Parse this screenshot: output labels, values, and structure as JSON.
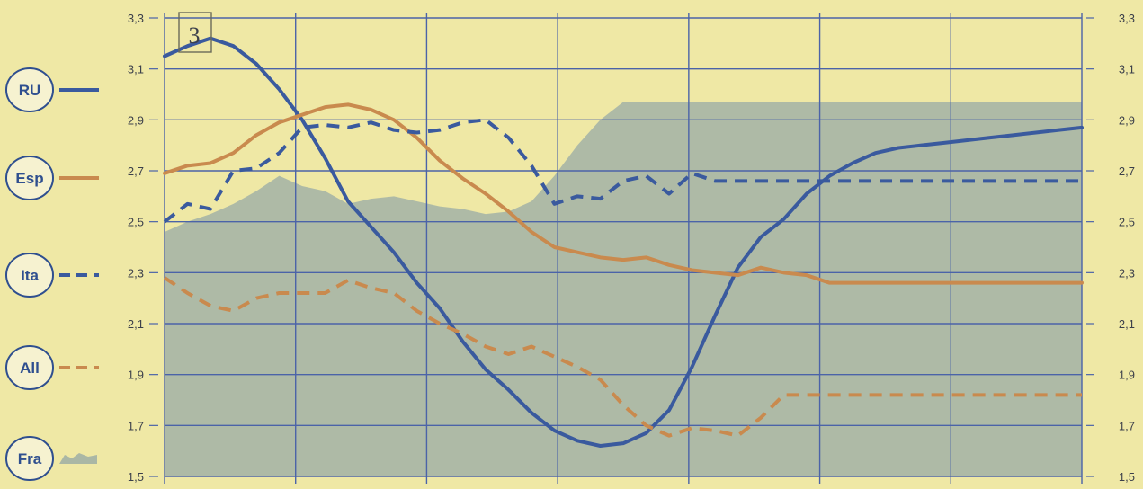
{
  "chart_data": {
    "type": "line",
    "panel_label": "3",
    "ylim": [
      1.5,
      3.3
    ],
    "y_ticks": [
      "3,3",
      "3,1",
      "2,9",
      "2,7",
      "2,5",
      "2,3",
      "2,1",
      "1,9",
      "1,7",
      "1,5"
    ],
    "y_tick_values": [
      3.3,
      3.1,
      2.9,
      2.7,
      2.5,
      2.3,
      2.1,
      1.9,
      1.7,
      1.5
    ],
    "x": [
      0,
      1,
      2,
      3,
      4,
      5,
      6,
      7,
      8,
      9,
      10,
      11,
      12,
      13,
      14,
      15,
      16,
      17,
      18,
      19,
      20,
      21,
      22,
      23,
      24,
      25,
      26,
      27,
      28,
      29,
      30,
      31,
      32,
      33,
      34,
      35,
      36,
      37,
      38,
      39,
      40
    ],
    "xlim": [
      0,
      40
    ],
    "x_grid_count": 7,
    "y_grid": true,
    "legend_position": "left",
    "colors": {
      "blue": "#3a5a9e",
      "orange": "#c98a4e",
      "area": "#aab7a5",
      "background": "#efe8a5",
      "grid": "#4b63a8"
    },
    "series": [
      {
        "name": "RU",
        "style": "solid",
        "color": "#3a5a9e",
        "values": [
          3.15,
          3.19,
          3.22,
          3.19,
          3.12,
          3.02,
          2.9,
          2.75,
          2.58,
          2.48,
          2.38,
          2.26,
          2.16,
          2.03,
          1.92,
          1.84,
          1.75,
          1.68,
          1.64,
          1.62,
          1.63,
          1.67,
          1.76,
          1.93,
          2.13,
          2.32,
          2.44,
          2.51,
          2.61,
          2.68,
          2.73,
          2.77,
          2.79,
          2.8,
          2.81,
          2.82,
          2.83,
          2.84,
          2.85,
          2.86,
          2.87
        ]
      },
      {
        "name": "Esp",
        "style": "solid",
        "color": "#c98a4e",
        "values": [
          2.69,
          2.72,
          2.73,
          2.77,
          2.84,
          2.89,
          2.92,
          2.95,
          2.96,
          2.94,
          2.9,
          2.83,
          2.74,
          2.67,
          2.61,
          2.54,
          2.46,
          2.4,
          2.38,
          2.36,
          2.35,
          2.36,
          2.33,
          2.31,
          2.3,
          2.29,
          2.32,
          2.3,
          2.29,
          2.26,
          2.26,
          2.26,
          2.26,
          2.26,
          2.26,
          2.26,
          2.26,
          2.26,
          2.26,
          2.26,
          2.26
        ]
      },
      {
        "name": "Ita",
        "style": "dashed",
        "color": "#3a5a9e",
        "values": [
          2.5,
          2.57,
          2.55,
          2.7,
          2.71,
          2.77,
          2.87,
          2.88,
          2.87,
          2.89,
          2.86,
          2.85,
          2.86,
          2.89,
          2.9,
          2.83,
          2.72,
          2.57,
          2.6,
          2.59,
          2.66,
          2.68,
          2.61,
          2.69,
          2.66,
          2.66,
          2.66,
          2.66,
          2.66,
          2.66,
          2.66,
          2.66,
          2.66,
          2.66,
          2.66,
          2.66,
          2.66,
          2.66,
          2.66,
          2.66,
          2.66
        ]
      },
      {
        "name": "All",
        "style": "dashed",
        "color": "#c98a4e",
        "values": [
          2.28,
          2.22,
          2.17,
          2.15,
          2.2,
          2.22,
          2.22,
          2.22,
          2.27,
          2.24,
          2.22,
          2.15,
          2.1,
          2.06,
          2.01,
          1.98,
          2.01,
          1.97,
          1.93,
          1.88,
          1.78,
          1.7,
          1.66,
          1.69,
          1.68,
          1.66,
          1.73,
          1.82,
          1.82,
          1.82,
          1.82,
          1.82,
          1.82,
          1.82,
          1.82,
          1.82,
          1.82,
          1.82,
          1.82,
          1.82,
          1.82
        ]
      },
      {
        "name": "Fra",
        "style": "area",
        "color": "#aab7a5",
        "values": [
          2.46,
          2.5,
          2.53,
          2.57,
          2.62,
          2.68,
          2.64,
          2.62,
          2.57,
          2.59,
          2.6,
          2.58,
          2.56,
          2.55,
          2.53,
          2.54,
          2.58,
          2.68,
          2.8,
          2.9,
          2.97,
          2.97,
          2.97,
          2.97,
          2.97,
          2.97,
          2.97,
          2.97,
          2.97,
          2.97,
          2.97,
          2.97,
          2.97,
          2.97,
          2.97,
          2.97,
          2.97,
          2.97,
          2.97,
          2.97,
          2.97
        ]
      }
    ]
  }
}
